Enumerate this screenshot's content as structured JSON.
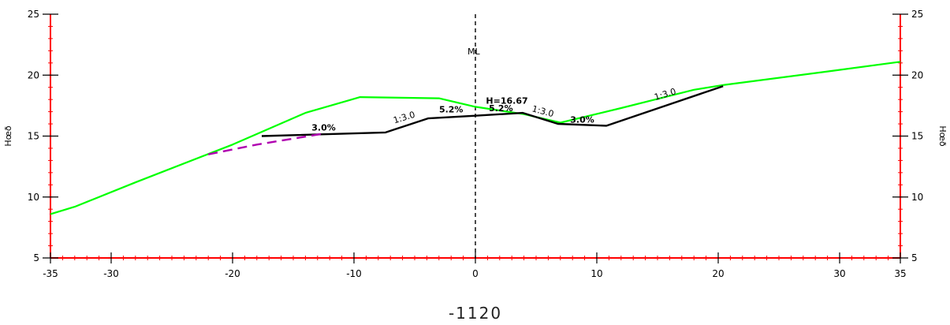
{
  "station_label": "-1120",
  "colors": {
    "frame": "#ff0000",
    "ground": "#00ff00",
    "design": "#000000",
    "cut": "#b000b0",
    "centerline": "#000000"
  },
  "chart_data": {
    "type": "line",
    "xlim": [
      -35,
      35
    ],
    "ylim": [
      5,
      25
    ],
    "ylabel_left": "Hœð",
    "ylabel_right": "Hœð",
    "x_ticks": [
      -35,
      -30,
      -20,
      -10,
      0,
      10,
      20,
      30,
      35
    ],
    "x_tick_labels": [
      "-35",
      "-30",
      "-20",
      "-10",
      "0",
      "10",
      "20",
      "30",
      "35"
    ],
    "y_ticks": [
      5,
      10,
      15,
      20,
      25
    ],
    "y_tick_labels": [
      "5",
      "10",
      "15",
      "20",
      "25"
    ],
    "centerline_label": "ML",
    "series": [
      {
        "key": "ground",
        "points": [
          [
            -35,
            8.6
          ],
          [
            -33,
            9.2
          ],
          [
            -28,
            11.2
          ],
          [
            -20,
            14.3
          ],
          [
            -14,
            16.9
          ],
          [
            -9.5,
            18.2
          ],
          [
            -3,
            18.1
          ],
          [
            0,
            17.4
          ],
          [
            4,
            16.8
          ],
          [
            7,
            16.1
          ],
          [
            12,
            17.3
          ],
          [
            18,
            18.8
          ],
          [
            20.5,
            19.2
          ],
          [
            29,
            20.3
          ],
          [
            35,
            21.1
          ]
        ]
      },
      {
        "key": "design",
        "points": [
          [
            -17.6,
            15.0
          ],
          [
            -7.4,
            15.3
          ],
          [
            -3.9,
            16.45
          ],
          [
            0,
            16.67
          ],
          [
            3.9,
            16.9
          ],
          [
            6.8,
            16.0
          ],
          [
            10.8,
            15.85
          ],
          [
            20.4,
            19.1
          ]
        ]
      },
      {
        "key": "cut",
        "dashed": true,
        "points": [
          [
            -22,
            13.5
          ],
          [
            -18,
            14.3
          ],
          [
            -12.5,
            15.2
          ]
        ]
      }
    ],
    "annotations": [
      {
        "text": "3.0%",
        "x": -12.5,
        "y": 15.45,
        "bold": true,
        "angle": 0
      },
      {
        "text": "1:3.0",
        "x": -5.8,
        "y": 16.3,
        "bold": false,
        "angle": -17
      },
      {
        "text": "5.2%",
        "x": -2.0,
        "y": 16.95,
        "bold": true,
        "angle": 0
      },
      {
        "text": "H=16.67",
        "x": 2.6,
        "y": 17.65,
        "bold": true,
        "angle": 0
      },
      {
        "text": "5.2%",
        "x": 2.1,
        "y": 17.05,
        "bold": true,
        "angle": 0
      },
      {
        "text": "1:3.0",
        "x": 5.5,
        "y": 16.8,
        "bold": false,
        "angle": 15
      },
      {
        "text": "3.0%",
        "x": 8.8,
        "y": 16.1,
        "bold": true,
        "angle": 0
      },
      {
        "text": "1:3.0",
        "x": 15.7,
        "y": 18.2,
        "bold": false,
        "angle": -17
      }
    ]
  }
}
